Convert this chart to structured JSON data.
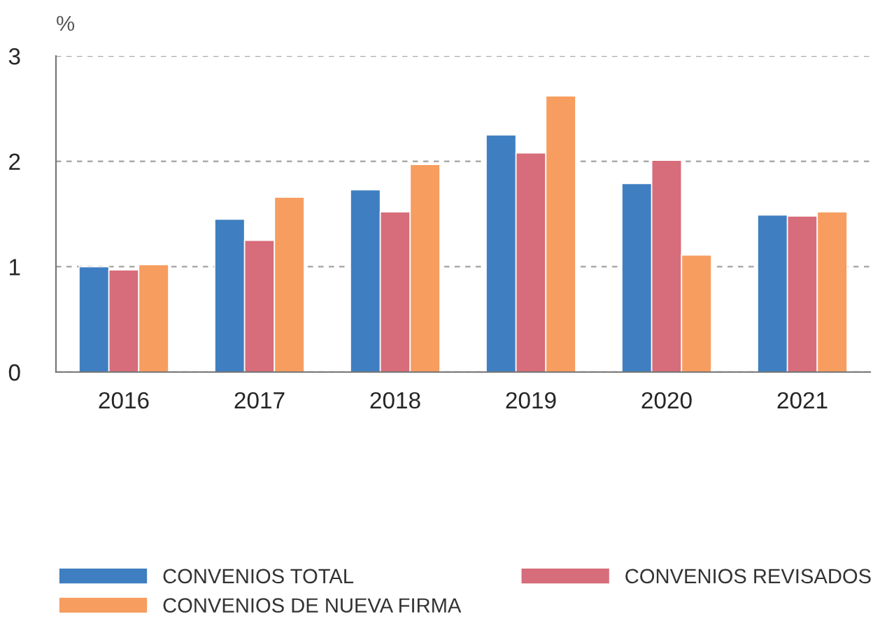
{
  "chart_data": {
    "type": "bar",
    "ylabel": "%",
    "categories": [
      "2016",
      "2017",
      "2018",
      "2019",
      "2020",
      "2021"
    ],
    "series": [
      {
        "name": "CONVENIOS TOTAL",
        "color": "#3f7fc1",
        "values": [
          1.0,
          1.45,
          1.73,
          2.25,
          1.79,
          1.49
        ]
      },
      {
        "name": "CONVENIOS REVISADOS",
        "color": "#d76c7a",
        "values": [
          0.97,
          1.25,
          1.52,
          2.08,
          2.01,
          1.48
        ]
      },
      {
        "name": "CONVENIOS DE NUEVA FIRMA",
        "color": "#f79d5f",
        "values": [
          1.02,
          1.66,
          1.97,
          2.62,
          1.11,
          1.52
        ]
      }
    ],
    "ylim": [
      0,
      3
    ],
    "yticks": [
      0,
      1,
      2,
      3
    ],
    "grid": "y",
    "legend": "bottom"
  }
}
